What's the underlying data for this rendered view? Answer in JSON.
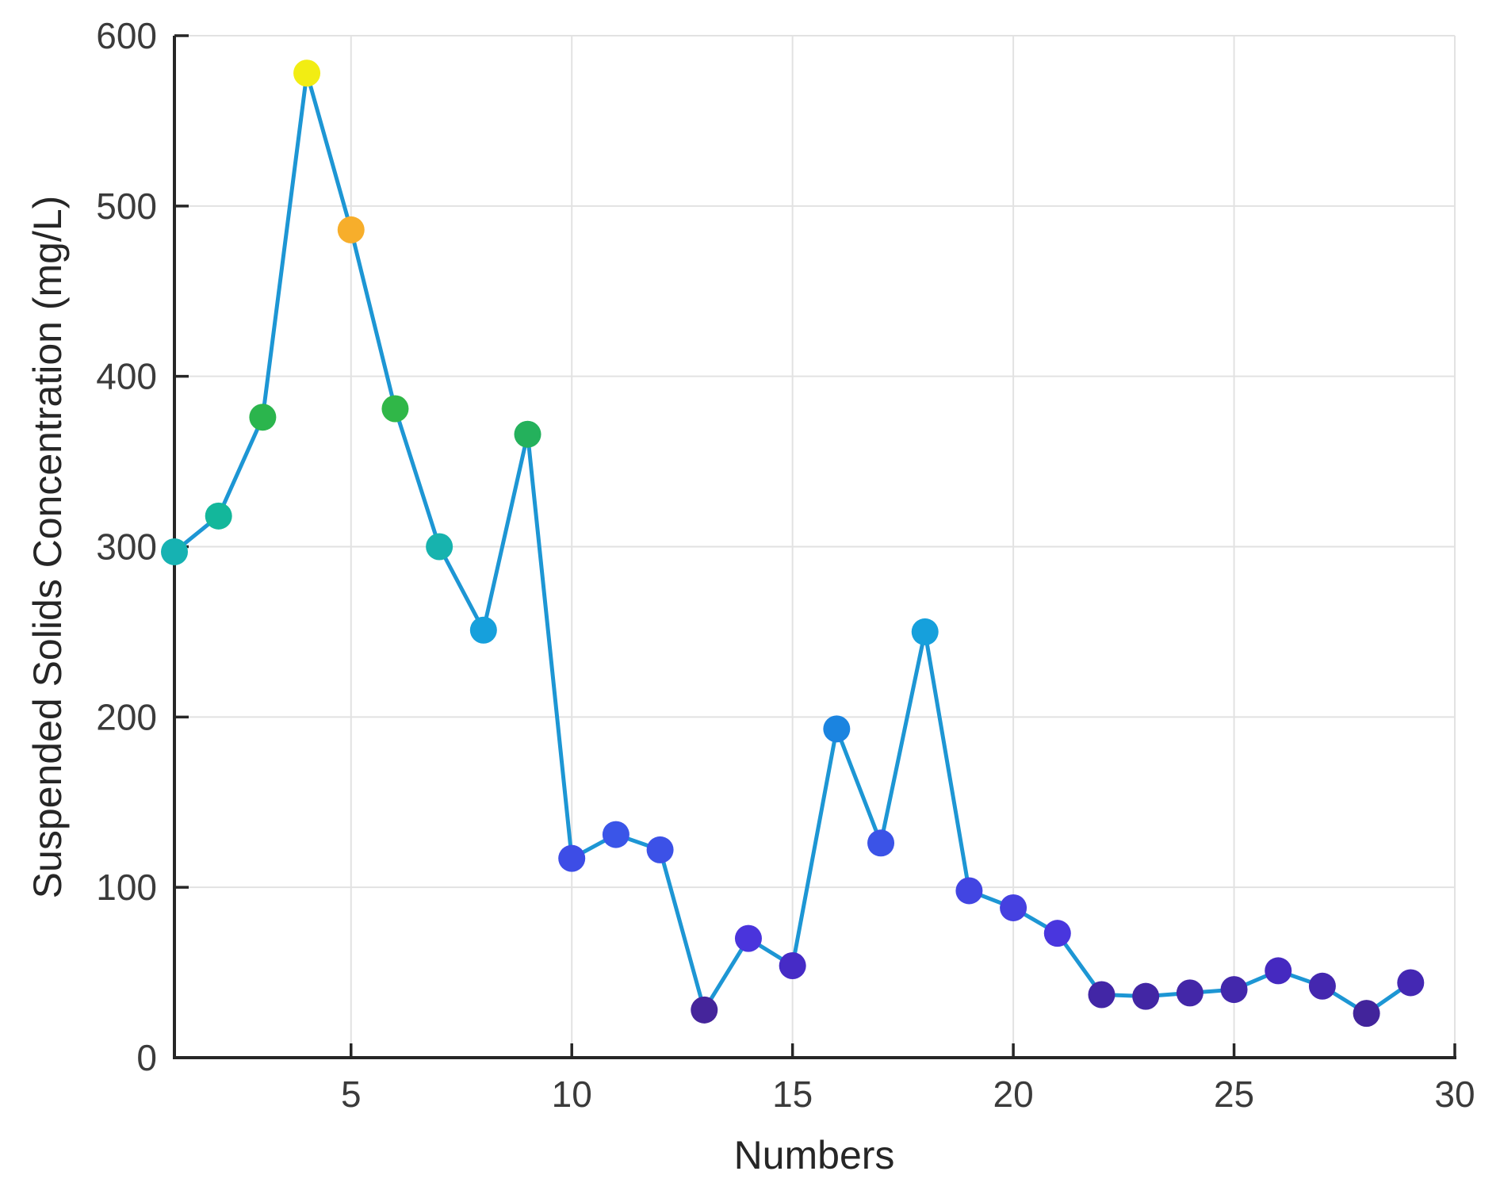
{
  "chart_data": {
    "type": "line",
    "title": "",
    "xlabel": "Numbers",
    "ylabel": "Suspended Solids Concentration (mg/L)",
    "x": [
      1,
      2,
      3,
      4,
      5,
      6,
      7,
      8,
      9,
      10,
      11,
      12,
      13,
      14,
      15,
      16,
      17,
      18,
      19,
      20,
      21,
      22,
      23,
      24,
      25,
      26,
      27,
      28,
      29
    ],
    "values": [
      297,
      318,
      376,
      578,
      486,
      381,
      300,
      251,
      366,
      117,
      131,
      122,
      28,
      70,
      54,
      193,
      126,
      250,
      98,
      88,
      73,
      37,
      36,
      38,
      40,
      51,
      42,
      26,
      44
    ],
    "point_colors": [
      "#16B2B2",
      "#13B79B",
      "#2BB54D",
      "#F2ED13",
      "#F7AE2B",
      "#30B748",
      "#17B3AE",
      "#16A0DC",
      "#24B15C",
      "#3D4DE6",
      "#3A55E8",
      "#3C51E7",
      "#45259B",
      "#4A34DC",
      "#462BC6",
      "#1B84E0",
      "#3B53E7",
      "#16A0DC",
      "#4245E2",
      "#4540E0",
      "#4936DE",
      "#4226A6",
      "#4226A4",
      "#4327A8",
      "#4328AC",
      "#4529C0",
      "#4427AF",
      "#42249B",
      "#4428B3"
    ],
    "xlim": [
      1,
      30
    ],
    "ylim": [
      0,
      600
    ],
    "xticks": [
      5,
      10,
      15,
      20,
      25,
      30
    ],
    "yticks": [
      0,
      100,
      200,
      300,
      400,
      500,
      600
    ],
    "grid": true,
    "legend": null,
    "line_color": "#1D96D4",
    "axis_color": "#262626",
    "grid_color": "#E2E2E2",
    "tick_label_color": "#3B3B3B"
  }
}
